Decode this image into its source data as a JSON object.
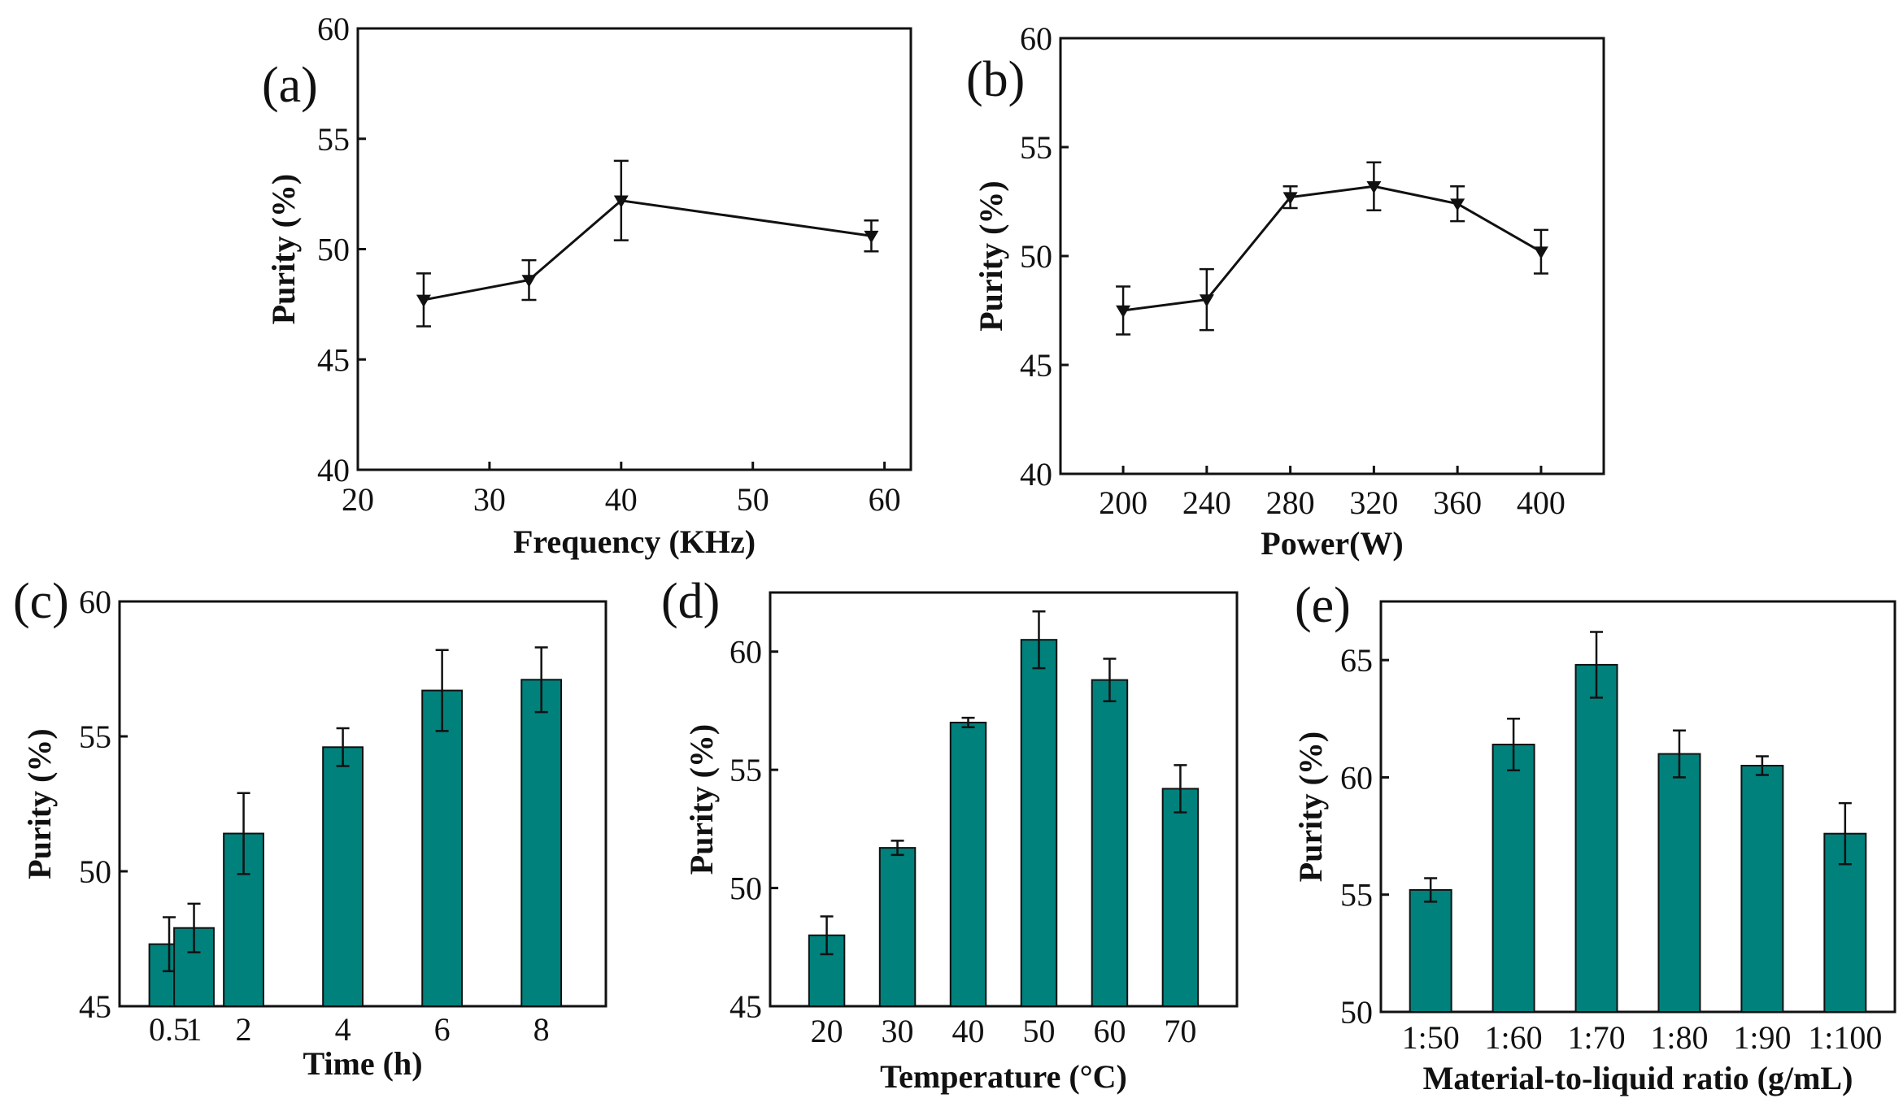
{
  "colors": {
    "bar": "#00817c",
    "line": "#111111",
    "axis": "#111111"
  },
  "chart_data": [
    {
      "id": "a",
      "panel_label": "(a)",
      "type": "line",
      "marker": "triangle-down",
      "title": "",
      "xlabel": "Frequency (KHz)",
      "ylabel": "Purity (%)",
      "xlim": [
        20,
        62
      ],
      "ylim": [
        40,
        60
      ],
      "xticks": [
        20,
        30,
        40,
        50,
        60
      ],
      "yticks": [
        40,
        45,
        50,
        55,
        60
      ],
      "x": [
        25,
        33,
        40,
        59
      ],
      "y": [
        47.7,
        48.6,
        52.2,
        50.6
      ],
      "err": [
        1.2,
        0.9,
        1.8,
        0.7
      ]
    },
    {
      "id": "b",
      "panel_label": "(b)",
      "type": "line",
      "marker": "triangle-down",
      "title": "",
      "xlabel": "Power(W)",
      "ylabel": "Purity (%)",
      "xlim": [
        170,
        430
      ],
      "ylim": [
        40,
        60
      ],
      "xticks": [
        200,
        240,
        280,
        320,
        360,
        400
      ],
      "yticks": [
        40,
        45,
        50,
        55,
        60
      ],
      "x": [
        200,
        240,
        280,
        320,
        360,
        400
      ],
      "y": [
        47.5,
        48.0,
        52.7,
        53.2,
        52.4,
        50.2
      ],
      "err": [
        1.1,
        1.4,
        0.5,
        1.1,
        0.8,
        1.0
      ]
    },
    {
      "id": "c",
      "panel_label": "(c)",
      "type": "bar",
      "title": "",
      "xlabel": "Time (h)",
      "ylabel": "Purity (%)",
      "xlim": [
        -0.5,
        9.3
      ],
      "ylim": [
        45,
        60
      ],
      "bar_width": 0.8,
      "yticks": [
        45,
        50,
        55,
        60
      ],
      "x": [
        0.5,
        1,
        2,
        4,
        6,
        8
      ],
      "categories": [
        "0.5",
        "1",
        "2",
        "4",
        "6",
        "8"
      ],
      "values": [
        47.3,
        47.9,
        51.4,
        54.6,
        56.7,
        57.1
      ],
      "err": [
        1.0,
        0.9,
        1.5,
        0.7,
        1.5,
        1.2
      ]
    },
    {
      "id": "d",
      "panel_label": "(d)",
      "type": "bar",
      "title": "",
      "xlabel": "Temperature (°C)",
      "ylabel": "Purity (%)",
      "xlim": [
        12,
        78
      ],
      "ylim": [
        45,
        62.5
      ],
      "bar_width": 5,
      "yticks": [
        45,
        50,
        55,
        60
      ],
      "x": [
        20,
        30,
        40,
        50,
        60,
        70
      ],
      "categories": [
        "20",
        "30",
        "40",
        "50",
        "60",
        "70"
      ],
      "values": [
        48.0,
        51.7,
        57.0,
        60.5,
        58.8,
        54.2
      ],
      "err": [
        0.8,
        0.3,
        0.2,
        1.2,
        0.9,
        1.0
      ]
    },
    {
      "id": "e",
      "panel_label": "(e)",
      "type": "bar",
      "title": "",
      "xlabel": "Material-to-liquid ratio (g/mL)",
      "ylabel": "Purity (%)",
      "xlim": [
        -0.6,
        5.6
      ],
      "ylim": [
        50,
        67.5
      ],
      "bar_width": 0.5,
      "yticks": [
        50,
        55,
        60,
        65
      ],
      "x": [
        0,
        1,
        2,
        3,
        4,
        5
      ],
      "categories": [
        "1:50",
        "1:60",
        "1:70",
        "1:80",
        "1:90",
        "1:100"
      ],
      "values": [
        55.2,
        61.4,
        64.8,
        61.0,
        60.5,
        57.6
      ],
      "err": [
        0.5,
        1.1,
        1.4,
        1.0,
        0.4,
        1.3
      ]
    }
  ]
}
